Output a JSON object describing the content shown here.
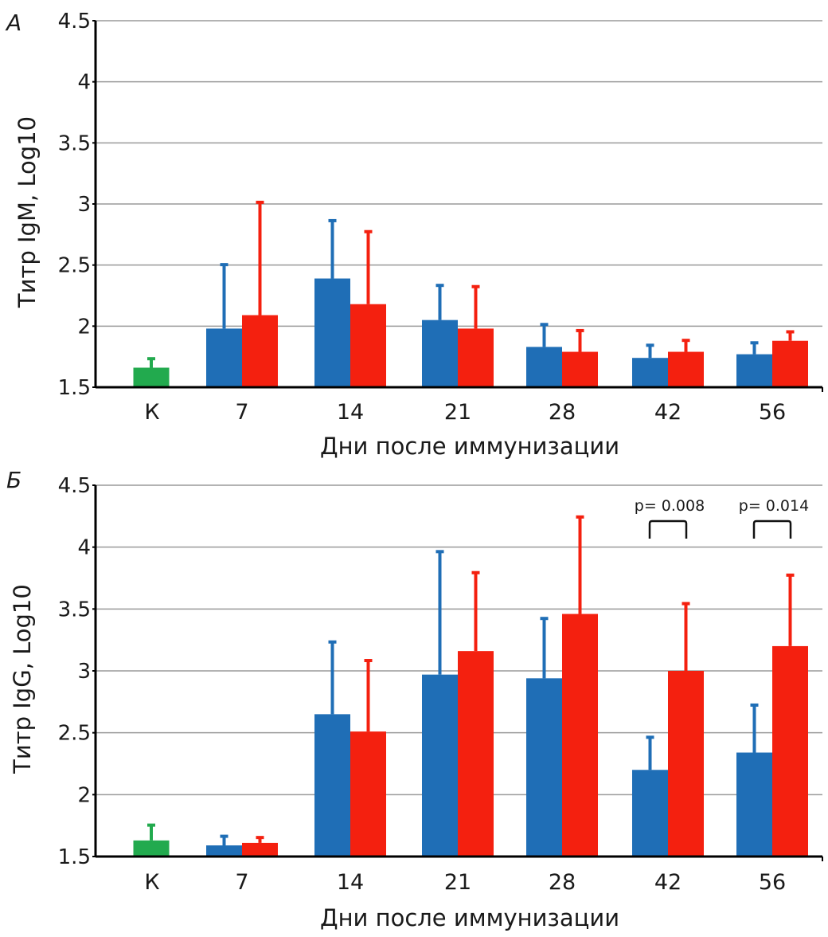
{
  "colors": {
    "control": "#22aa4e",
    "blue": "#1f6eb6",
    "red": "#f4200f",
    "grid": "#9a9a9a",
    "axis": "#000000"
  },
  "chart_data": [
    {
      "type": "bar",
      "panel_label": "А",
      "title": "",
      "xlabel": "Дни после иммунизации",
      "ylabel": "Титр IgM, Log10",
      "ylim": [
        1.5,
        4.5
      ],
      "yticks": [
        "1.5",
        "2",
        "2.5",
        "3",
        "3.5",
        "4",
        "4.5"
      ],
      "grid": true,
      "categories": [
        "К",
        "7",
        "14",
        "21",
        "28",
        "42",
        "56"
      ],
      "control": {
        "category": "К",
        "value": 1.66,
        "error_top": 1.74
      },
      "series": [
        {
          "name": "blue",
          "values": [
            null,
            1.98,
            2.39,
            2.05,
            1.83,
            1.74,
            1.77
          ],
          "error_top": [
            null,
            2.51,
            2.87,
            2.34,
            2.02,
            1.85,
            1.87
          ]
        },
        {
          "name": "red",
          "values": [
            null,
            2.09,
            2.18,
            1.98,
            1.79,
            1.79,
            1.88
          ],
          "error_top": [
            null,
            3.02,
            2.78,
            2.33,
            1.97,
            1.89,
            1.96
          ]
        }
      ],
      "annotations": []
    },
    {
      "type": "bar",
      "panel_label": "Б",
      "title": "",
      "xlabel": "Дни после иммунизации",
      "ylabel": "Титр IgG, Log10",
      "ylim": [
        1.5,
        4.5
      ],
      "yticks": [
        "1.5",
        "2",
        "2.5",
        "3",
        "3.5",
        "4",
        "4.5"
      ],
      "grid": true,
      "categories": [
        "К",
        "7",
        "14",
        "21",
        "28",
        "42",
        "56"
      ],
      "control": {
        "category": "К",
        "value": 1.63,
        "error_top": 1.76
      },
      "series": [
        {
          "name": "blue",
          "values": [
            null,
            1.59,
            2.65,
            2.97,
            2.94,
            2.2,
            2.34
          ],
          "error_top": [
            null,
            1.67,
            3.24,
            3.97,
            3.43,
            2.47,
            2.73
          ]
        },
        {
          "name": "red",
          "values": [
            null,
            1.61,
            2.51,
            3.16,
            3.46,
            3.0,
            3.2
          ],
          "error_top": [
            null,
            1.66,
            3.09,
            3.8,
            4.25,
            3.55,
            3.78
          ]
        }
      ],
      "annotations": [
        {
          "category": "42",
          "text": "p= 0.008"
        },
        {
          "category": "56",
          "text": "p= 0.014"
        }
      ]
    }
  ]
}
